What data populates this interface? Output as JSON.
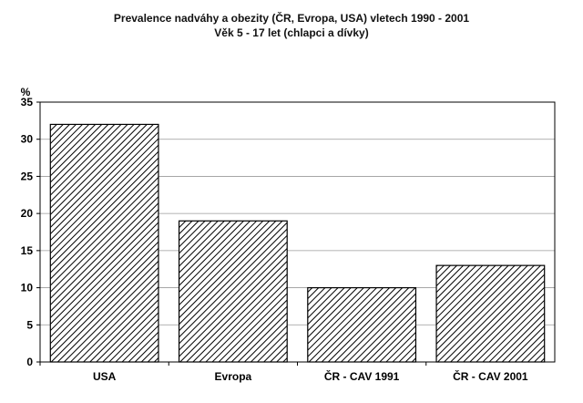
{
  "chart_data": {
    "type": "bar",
    "title": "Prevalence nadváhy a obezity (ČR, Evropa, USA) vletech 1990 - 2001",
    "subtitle": "Věk 5 - 17 let (chlapci a dívky)",
    "ylabel": "%",
    "xlabel": "",
    "categories": [
      "USA",
      "Evropa",
      "ČR - CAV 1991",
      "ČR - CAV 2001"
    ],
    "values": [
      32,
      19,
      10,
      13
    ],
    "ylim": [
      0,
      35
    ],
    "yticks": [
      "0",
      "5",
      "10",
      "15",
      "20",
      "25",
      "30",
      "35"
    ],
    "grid": true,
    "legend": "none",
    "colors": {
      "bar_fill_pattern": "diagonal-hatch",
      "bar_stroke": "#000000",
      "grid": "#999999"
    }
  }
}
